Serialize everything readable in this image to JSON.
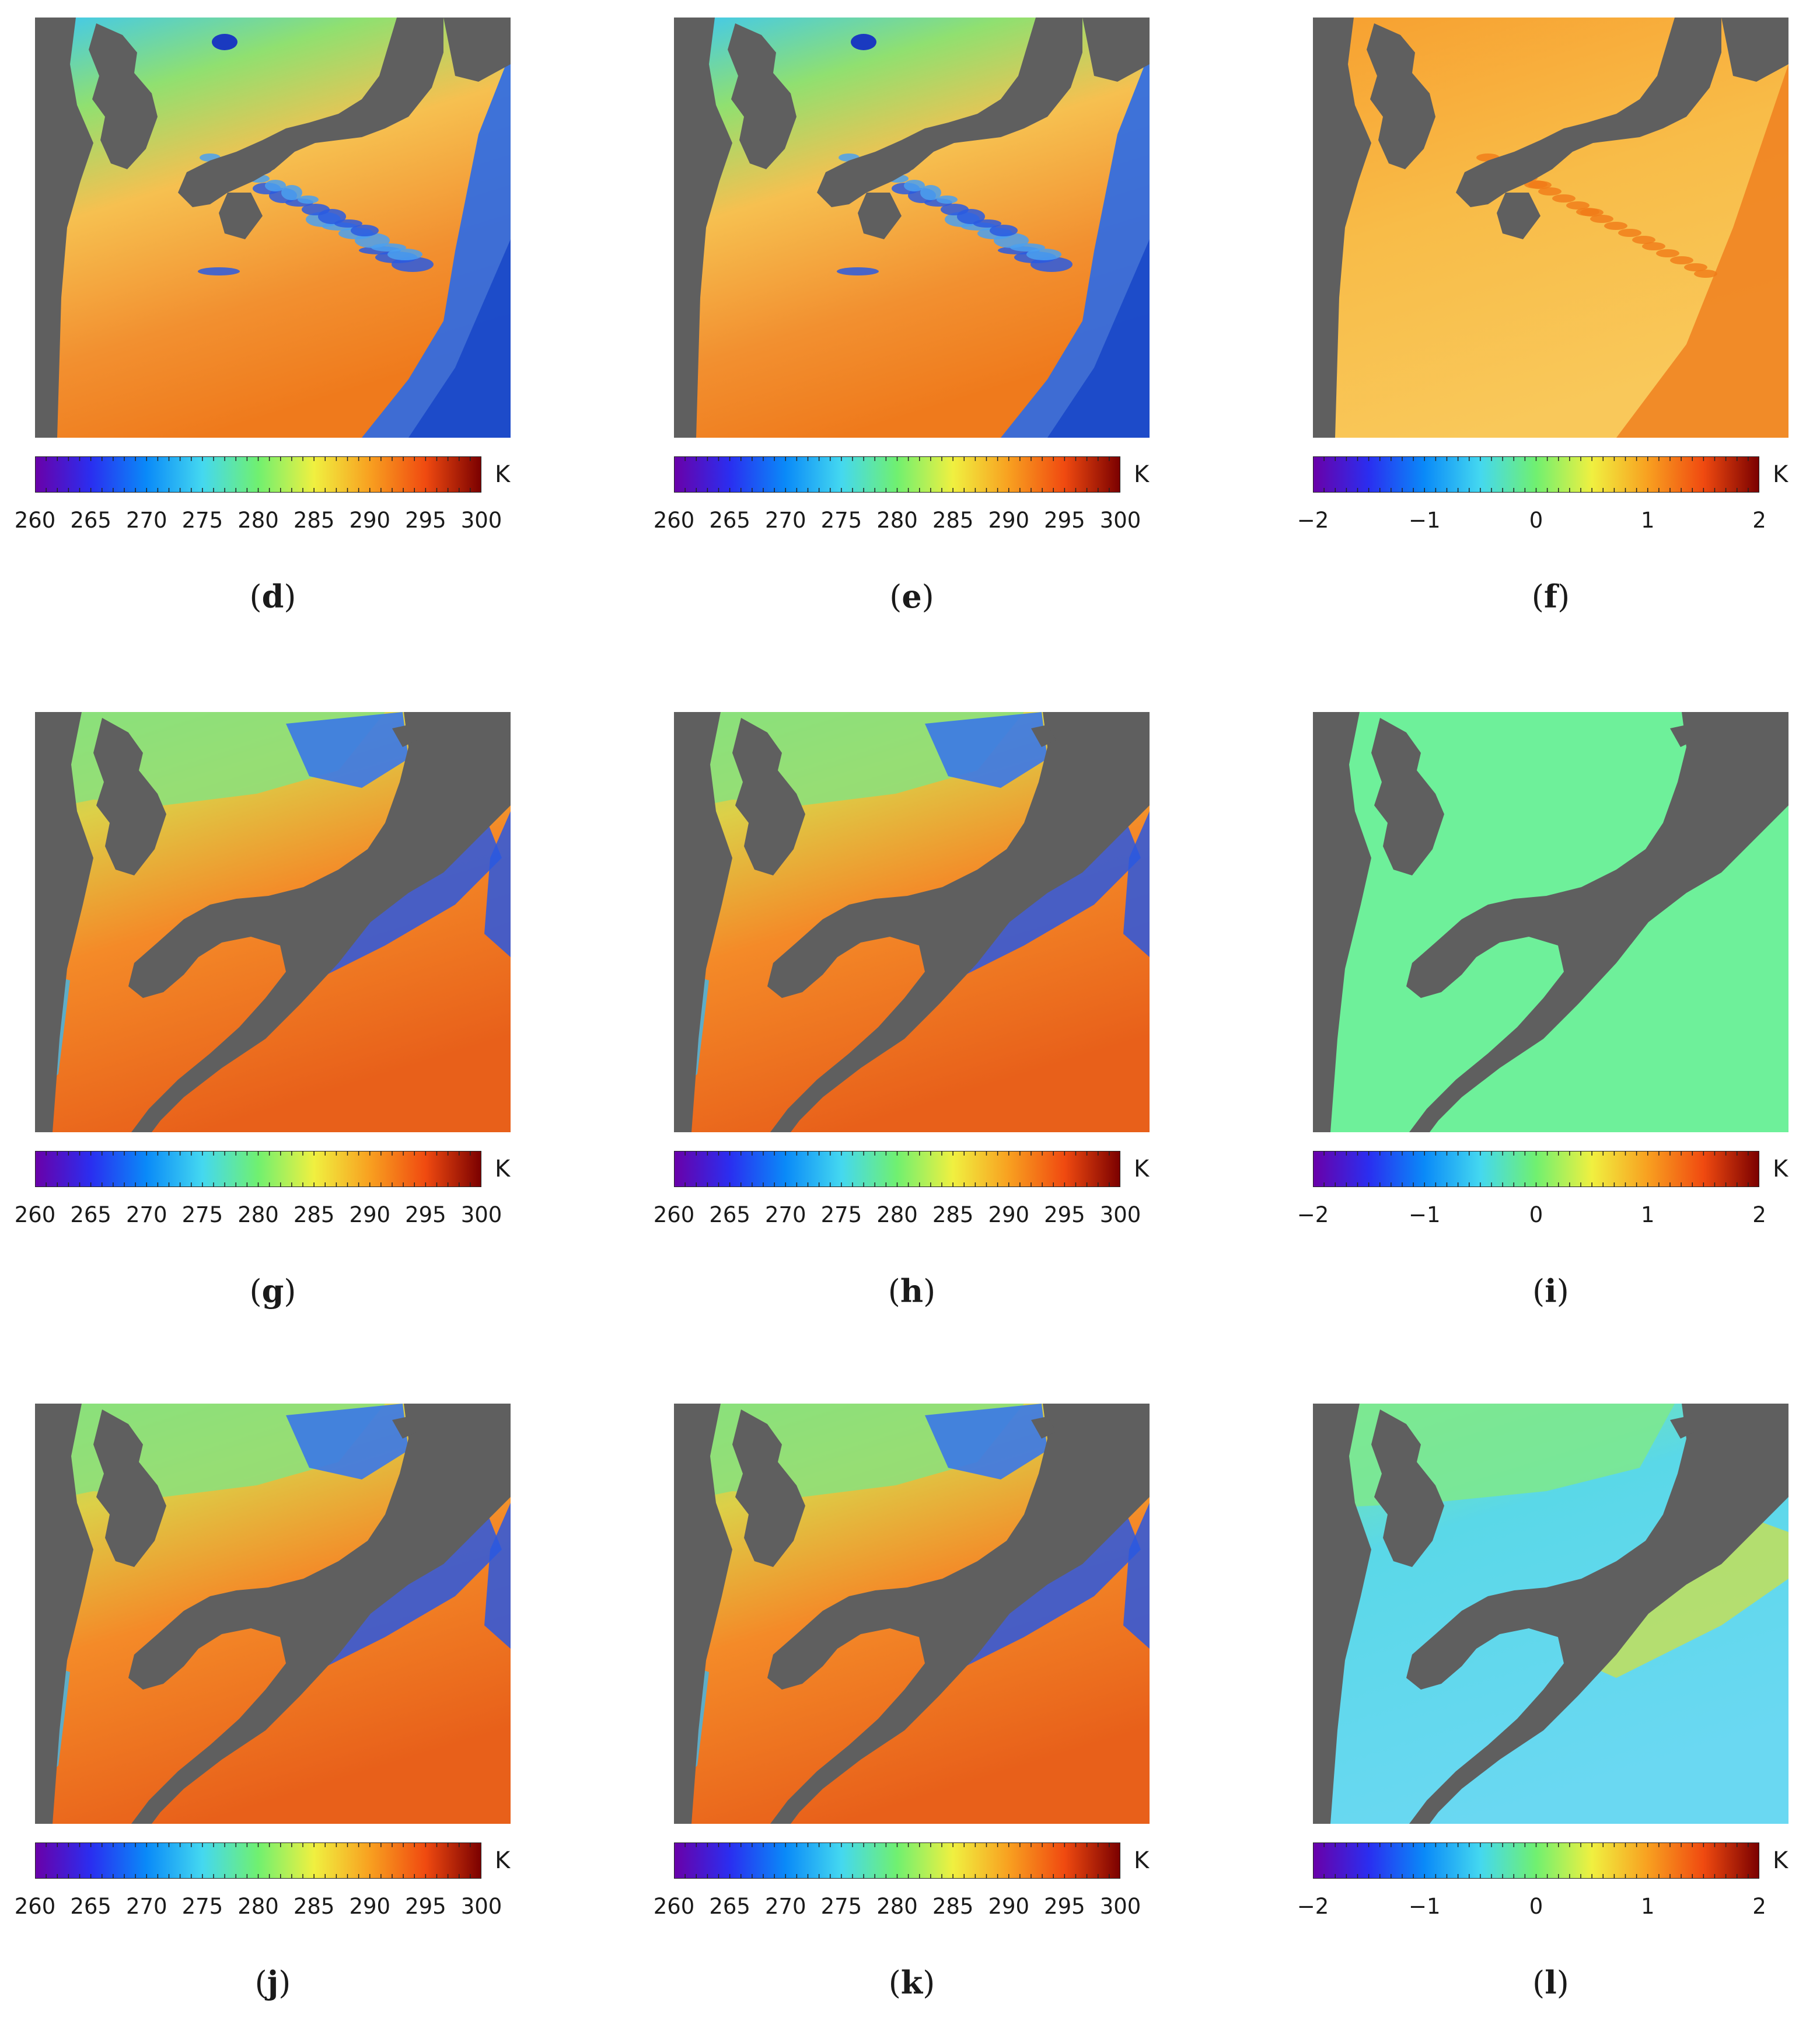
{
  "colors": {
    "land": "#5f5f5f",
    "sea_cold": "#39b8f0",
    "sea_mild": "#7ee07a",
    "sea_warm": "#f7b030",
    "sea_hot": "#f07818",
    "cloud": "#1e5ad8"
  },
  "colorbar_stops": [
    "#6a00a8",
    "#2a2ef0",
    "#0a8af8",
    "#44d8f0",
    "#70f070",
    "#f0f040",
    "#f8a020",
    "#f04a10",
    "#7a0000"
  ],
  "colorbars": {
    "bt": {
      "unit": "K",
      "ticks": [
        "260",
        "265",
        "270",
        "275",
        "280",
        "285",
        "290",
        "295",
        "300"
      ]
    },
    "diff": {
      "unit": "K",
      "ticks": [
        "−2",
        "−1",
        "0",
        "1",
        "2"
      ]
    }
  },
  "panels": [
    {
      "label": "d",
      "kind": "bt",
      "style": "d"
    },
    {
      "label": "e",
      "kind": "bt",
      "style": "d"
    },
    {
      "label": "f",
      "kind": "diff",
      "style": "f"
    },
    {
      "label": "g",
      "kind": "bt",
      "style": "g"
    },
    {
      "label": "h",
      "kind": "bt",
      "style": "g"
    },
    {
      "label": "i",
      "kind": "diff",
      "style": "i"
    },
    {
      "label": "j",
      "kind": "bt",
      "style": "g"
    },
    {
      "label": "k",
      "kind": "bt",
      "style": "g"
    },
    {
      "label": "l",
      "kind": "diff",
      "style": "l"
    }
  ]
}
